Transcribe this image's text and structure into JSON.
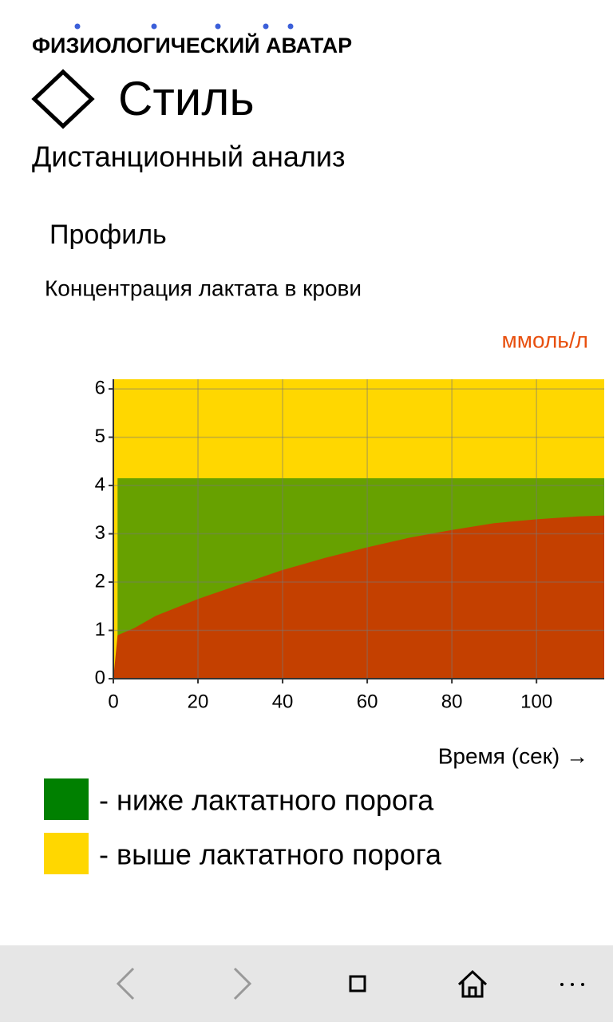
{
  "header": {
    "app_title": "ФИЗИОЛОГИЧЕСКИЙ АВАТАР",
    "page_title": "Стиль",
    "subtitle": "Дистанционный анализ"
  },
  "section": "Профиль",
  "chart_data": {
    "type": "area",
    "title": "Концентрация лактата в крови",
    "y_unit": "ммоль/л",
    "x_label": "Время (сек) →",
    "x": [
      0,
      1,
      5,
      10,
      20,
      30,
      40,
      50,
      60,
      70,
      80,
      90,
      100,
      110,
      116
    ],
    "series": [
      {
        "color": "#c44000",
        "values": [
          0,
          0.9,
          1.05,
          1.3,
          1.65,
          1.95,
          2.25,
          2.5,
          2.72,
          2.92,
          3.08,
          3.22,
          3.3,
          3.36,
          3.38
        ]
      }
    ],
    "threshold": 4.15,
    "threshold_x": [
      1,
      116
    ],
    "threshold_color": "#67a100",
    "background_color": "#ffd700",
    "xlim": [
      0,
      116
    ],
    "ylim": [
      0,
      6.2
    ],
    "xticks": [
      0,
      20,
      40,
      60,
      80,
      100
    ],
    "yticks": [
      0,
      1,
      2,
      3,
      4,
      5,
      6
    ],
    "grid": true,
    "legend": [
      {
        "label": "- ниже лактатного порога",
        "color": "#008000"
      },
      {
        "label": "- выше лактатного порога",
        "color": "#ffd700"
      }
    ]
  }
}
